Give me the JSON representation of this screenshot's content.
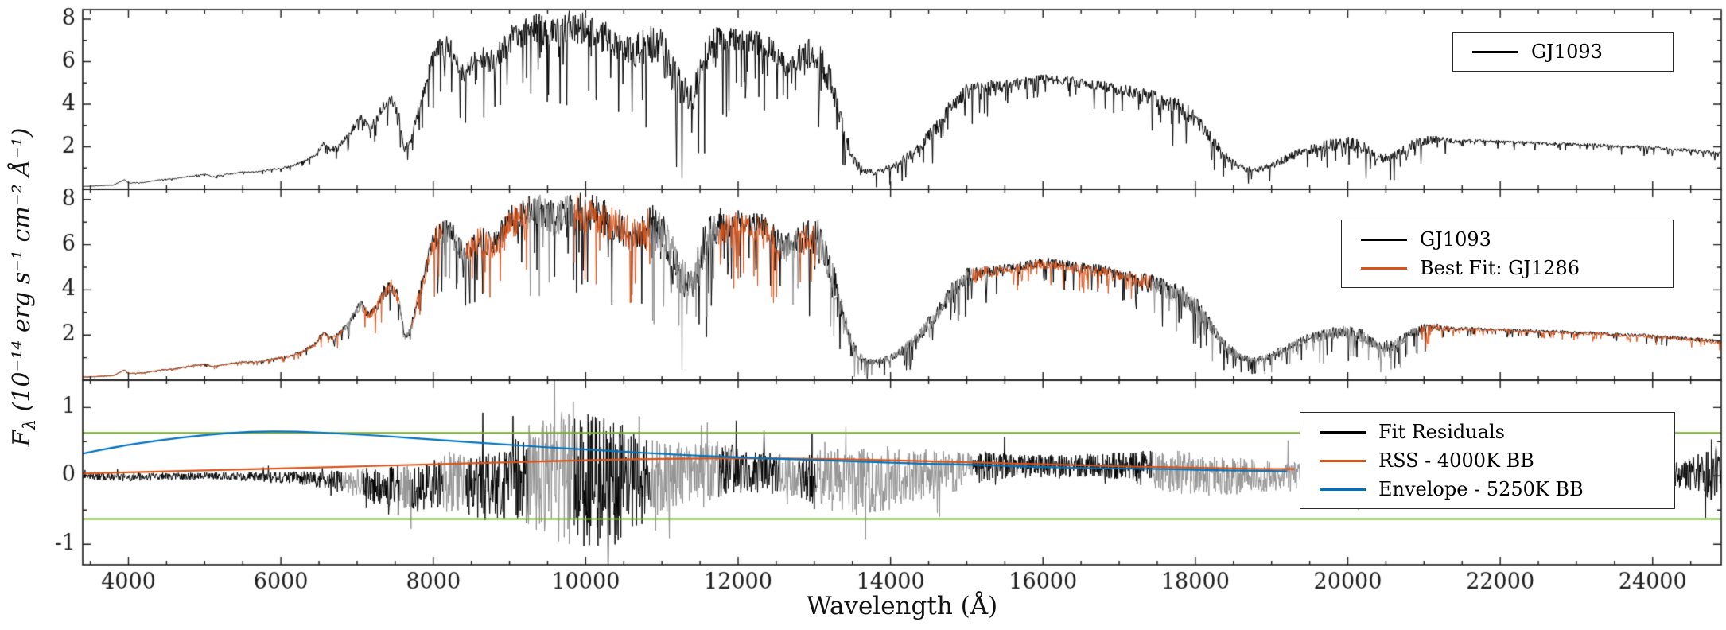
{
  "figure": {
    "xlabel": "Wavelength (Å)",
    "ylabel_prefix": "F",
    "ylabel_sub": "λ",
    "ylabel_rest": " (10⁻¹⁴ erg s⁻¹ cm⁻² Å⁻¹)",
    "xticks": [
      4000,
      6000,
      8000,
      10000,
      12000,
      14000,
      16000,
      18000,
      20000,
      22000,
      24000
    ],
    "x_minor_step": 500,
    "colors": {
      "observed": "#000000",
      "fit": "#d95319",
      "masked": "#919191",
      "residual_threshold": "#77ac30",
      "rss": "#d95319",
      "envelope": "#0072bd"
    }
  },
  "chart_data": [
    {
      "type": "line",
      "panel": "top",
      "xlim": [
        3400,
        24900
      ],
      "ylim": [
        0,
        8.45
      ],
      "yticks": [
        2,
        4,
        6,
        8
      ],
      "y_minor_step": 1,
      "legend": [
        {
          "label": "GJ1093",
          "color": "#000000"
        }
      ],
      "series": [
        {
          "name": "GJ1093",
          "color": "#000000",
          "style": "spectrum",
          "x": [
            3200,
            3500,
            3800,
            3950,
            4000,
            4200,
            4400,
            4600,
            4800,
            5000,
            5100,
            5300,
            5500,
            5700,
            5900,
            6100,
            6300,
            6450,
            6560,
            6650,
            6750,
            6900,
            7050,
            7150,
            7250,
            7350,
            7450,
            7550,
            7620,
            7700,
            7800,
            7900,
            8000,
            8100,
            8200,
            8300,
            8400,
            8500,
            8600,
            8700,
            8800,
            8900,
            9000,
            9100,
            9200,
            9300,
            9400,
            9500,
            9600,
            9700,
            9800,
            9900,
            10000,
            10100,
            10200,
            10350,
            10500,
            10650,
            10800,
            10950,
            11100,
            11250,
            11400,
            11550,
            11700,
            11850,
            12000,
            12150,
            12300,
            12450,
            12600,
            12750,
            12900,
            13050,
            13200,
            13350,
            13500,
            13650,
            13800,
            13950,
            14100,
            14250,
            14400,
            14600,
            14800,
            15000,
            15200,
            15400,
            15600,
            15800,
            16000,
            16200,
            16400,
            16600,
            16800,
            17000,
            17200,
            17400,
            17600,
            17800,
            18000,
            18200,
            18400,
            18600,
            18800,
            19000,
            19200,
            19400,
            19600,
            19800,
            20000,
            20200,
            20400,
            20600,
            20800,
            21000,
            21200,
            21400,
            21600,
            21800,
            22000,
            22200,
            22400,
            22600,
            22800,
            23000,
            23200,
            23400,
            23600,
            23800,
            24000,
            24200,
            24400,
            24600,
            24900
          ],
          "y": [
            0.12,
            0.15,
            0.2,
            0.45,
            0.3,
            0.32,
            0.45,
            0.5,
            0.62,
            0.72,
            0.6,
            0.72,
            0.8,
            0.82,
            0.95,
            1.05,
            1.3,
            1.6,
            2.15,
            1.85,
            2.0,
            2.6,
            3.4,
            2.9,
            3.2,
            3.9,
            4.2,
            3.6,
            1.9,
            2.2,
            3.6,
            4.8,
            6.3,
            6.6,
            6.7,
            6.1,
            5.5,
            5.9,
            6.3,
            6.1,
            6.0,
            6.5,
            7.0,
            7.2,
            7.4,
            7.5,
            7.6,
            7.3,
            7.2,
            7.5,
            7.6,
            7.5,
            7.5,
            7.4,
            7.3,
            7.0,
            6.7,
            6.5,
            6.8,
            6.7,
            6.0,
            4.6,
            4.2,
            6.0,
            6.8,
            6.9,
            7.0,
            6.9,
            6.8,
            6.5,
            5.8,
            6.1,
            6.4,
            6.3,
            5.2,
            3.2,
            1.5,
            0.85,
            0.8,
            0.95,
            1.2,
            1.6,
            2.1,
            2.9,
            3.9,
            4.6,
            4.8,
            4.9,
            5.0,
            5.1,
            5.2,
            5.15,
            5.05,
            4.95,
            4.85,
            4.7,
            4.55,
            4.35,
            4.1,
            3.8,
            3.3,
            2.4,
            1.5,
            1.0,
            0.9,
            1.1,
            1.45,
            1.75,
            1.95,
            2.1,
            2.2,
            1.95,
            1.45,
            1.55,
            2.0,
            2.3,
            2.35,
            2.25,
            2.3,
            2.25,
            2.25,
            2.2,
            2.2,
            2.15,
            2.15,
            2.1,
            2.1,
            2.05,
            2.0,
            2.0,
            1.95,
            1.9,
            1.85,
            1.8,
            1.7
          ],
          "rough_x": [
            3200,
            5000,
            6500,
            7500,
            8500,
            9500,
            10500,
            11300,
            12000,
            13000,
            13600,
            14500,
            15500,
            17000,
            18500,
            19500,
            20500,
            21500,
            23000,
            24900
          ],
          "rough": [
            0.05,
            0.06,
            0.08,
            0.12,
            0.14,
            0.16,
            0.18,
            0.3,
            0.12,
            0.18,
            0.3,
            0.2,
            0.06,
            0.08,
            0.25,
            0.2,
            0.25,
            0.05,
            0.05,
            0.08
          ]
        }
      ]
    },
    {
      "type": "line",
      "panel": "middle",
      "xlim": [
        3400,
        24900
      ],
      "ylim": [
        0,
        8.45
      ],
      "yticks": [
        2,
        4,
        6,
        8
      ],
      "y_minor_step": 1,
      "masked_windows": [
        [
          6820,
          7080
        ],
        [
          7560,
          7720
        ],
        [
          8130,
          8430
        ],
        [
          9250,
          9850
        ],
        [
          10850,
          11750
        ],
        [
          12550,
          12800
        ],
        [
          13020,
          15080
        ],
        [
          17430,
          20950
        ]
      ],
      "legend": [
        {
          "label": "GJ1093",
          "color": "#000000"
        },
        {
          "label": "Best Fit: GJ1286",
          "color": "#d95319"
        }
      ],
      "series": [
        {
          "name": "GJ1093",
          "color": "#000000",
          "style": "spectrum",
          "ref": [
            0,
            0
          ]
        },
        {
          "name": "Best Fit: GJ1286",
          "color": "#d95319",
          "masked_color": "#919191",
          "style": "spectrum",
          "ref": [
            0,
            0
          ],
          "y_scale": 0.985
        }
      ]
    },
    {
      "type": "line",
      "panel": "bottom",
      "xlim": [
        3400,
        24900
      ],
      "ylim": [
        -1.3,
        1.4
      ],
      "yticks": [
        -1,
        0,
        1
      ],
      "y_minor_step": 0.5,
      "masked_windows": [
        [
          6820,
          7080
        ],
        [
          7560,
          7720
        ],
        [
          8130,
          8430
        ],
        [
          9250,
          9850
        ],
        [
          10850,
          11750
        ],
        [
          12550,
          12800
        ],
        [
          13020,
          15080
        ],
        [
          17430,
          20950
        ]
      ],
      "threshold_lines": {
        "color": "#77ac30",
        "values": [
          0.63,
          -0.63
        ]
      },
      "legend": [
        {
          "label": "Fit Residuals",
          "color": "#000000"
        },
        {
          "label": "RSS - 4000K BB",
          "color": "#d95319"
        },
        {
          "label": "Envelope - 5250K BB",
          "color": "#0072bd"
        }
      ],
      "series": [
        {
          "name": "Fit Residuals",
          "color": "#000000",
          "masked_color": "#919191",
          "style": "residuals",
          "x": [
            3200,
            4000,
            5000,
            6000,
            6500,
            7000,
            7400,
            7800,
            8200,
            8600,
            9000,
            9300,
            9600,
            10000,
            10400,
            10800,
            11200,
            11600,
            12000,
            12400,
            12800,
            13200,
            13600,
            14000,
            14400,
            14800,
            15200,
            15600,
            16000,
            16500,
            17000,
            17400,
            17800,
            18200,
            18600,
            19000,
            19600,
            20000,
            20600,
            21000,
            21500,
            22000,
            22500,
            23000,
            23500,
            24000,
            24400,
            24900
          ],
          "mean": [
            0,
            -0.02,
            0,
            -0.02,
            -0.05,
            -0.1,
            -0.15,
            -0.2,
            -0.12,
            -0.15,
            -0.1,
            0,
            0,
            -0.05,
            -0.1,
            -0.05,
            0,
            0.05,
            0.1,
            0.05,
            0,
            -0.05,
            -0.1,
            -0.05,
            0,
            0.05,
            0.12,
            0.15,
            0.15,
            0.15,
            0.15,
            0.1,
            0.05,
            0,
            0,
            0,
            0.02,
            0.05,
            0.05,
            0.04,
            0.03,
            0.03,
            0.02,
            0.02,
            0.02,
            0.02,
            0.03,
            0.08
          ],
          "amp": [
            0.04,
            0.06,
            0.05,
            0.08,
            0.12,
            0.2,
            0.3,
            0.35,
            0.45,
            0.5,
            0.55,
            0.8,
            0.95,
            1.0,
            0.9,
            0.6,
            0.5,
            0.45,
            0.35,
            0.3,
            0.35,
            0.45,
            0.5,
            0.45,
            0.4,
            0.3,
            0.22,
            0.18,
            0.17,
            0.17,
            0.2,
            0.28,
            0.33,
            0.3,
            0.27,
            0.22,
            0.18,
            0.22,
            0.2,
            0.12,
            0.1,
            0.1,
            0.1,
            0.1,
            0.1,
            0.12,
            0.2,
            0.5
          ]
        },
        {
          "name": "RSS - 4000K BB",
          "color": "#d95319",
          "style": "smooth",
          "x": [
            3200,
            4000,
            5000,
            6000,
            7000,
            8000,
            9000,
            10000,
            11000,
            12000,
            13000,
            14000,
            15000,
            16000,
            17000,
            18000,
            19000,
            19300
          ],
          "y": [
            0.03,
            0.05,
            0.08,
            0.11,
            0.14,
            0.17,
            0.2,
            0.23,
            0.25,
            0.26,
            0.25,
            0.23,
            0.2,
            0.17,
            0.14,
            0.12,
            0.1,
            0.1
          ]
        },
        {
          "name": "Envelope - 5250K BB",
          "color": "#0072bd",
          "style": "smooth",
          "x": [
            3200,
            3800,
            4400,
            5000,
            5600,
            6200,
            6800,
            7400,
            8000,
            8800,
            9600,
            10400,
            11200,
            12000,
            12800,
            13600,
            14400,
            15200,
            16000,
            16800,
            17600,
            18400,
            19200
          ],
          "y": [
            0.28,
            0.42,
            0.52,
            0.6,
            0.65,
            0.65,
            0.62,
            0.58,
            0.53,
            0.47,
            0.41,
            0.36,
            0.31,
            0.27,
            0.24,
            0.21,
            0.18,
            0.16,
            0.13,
            0.11,
            0.1,
            0.08,
            0.07
          ]
        }
      ]
    }
  ]
}
